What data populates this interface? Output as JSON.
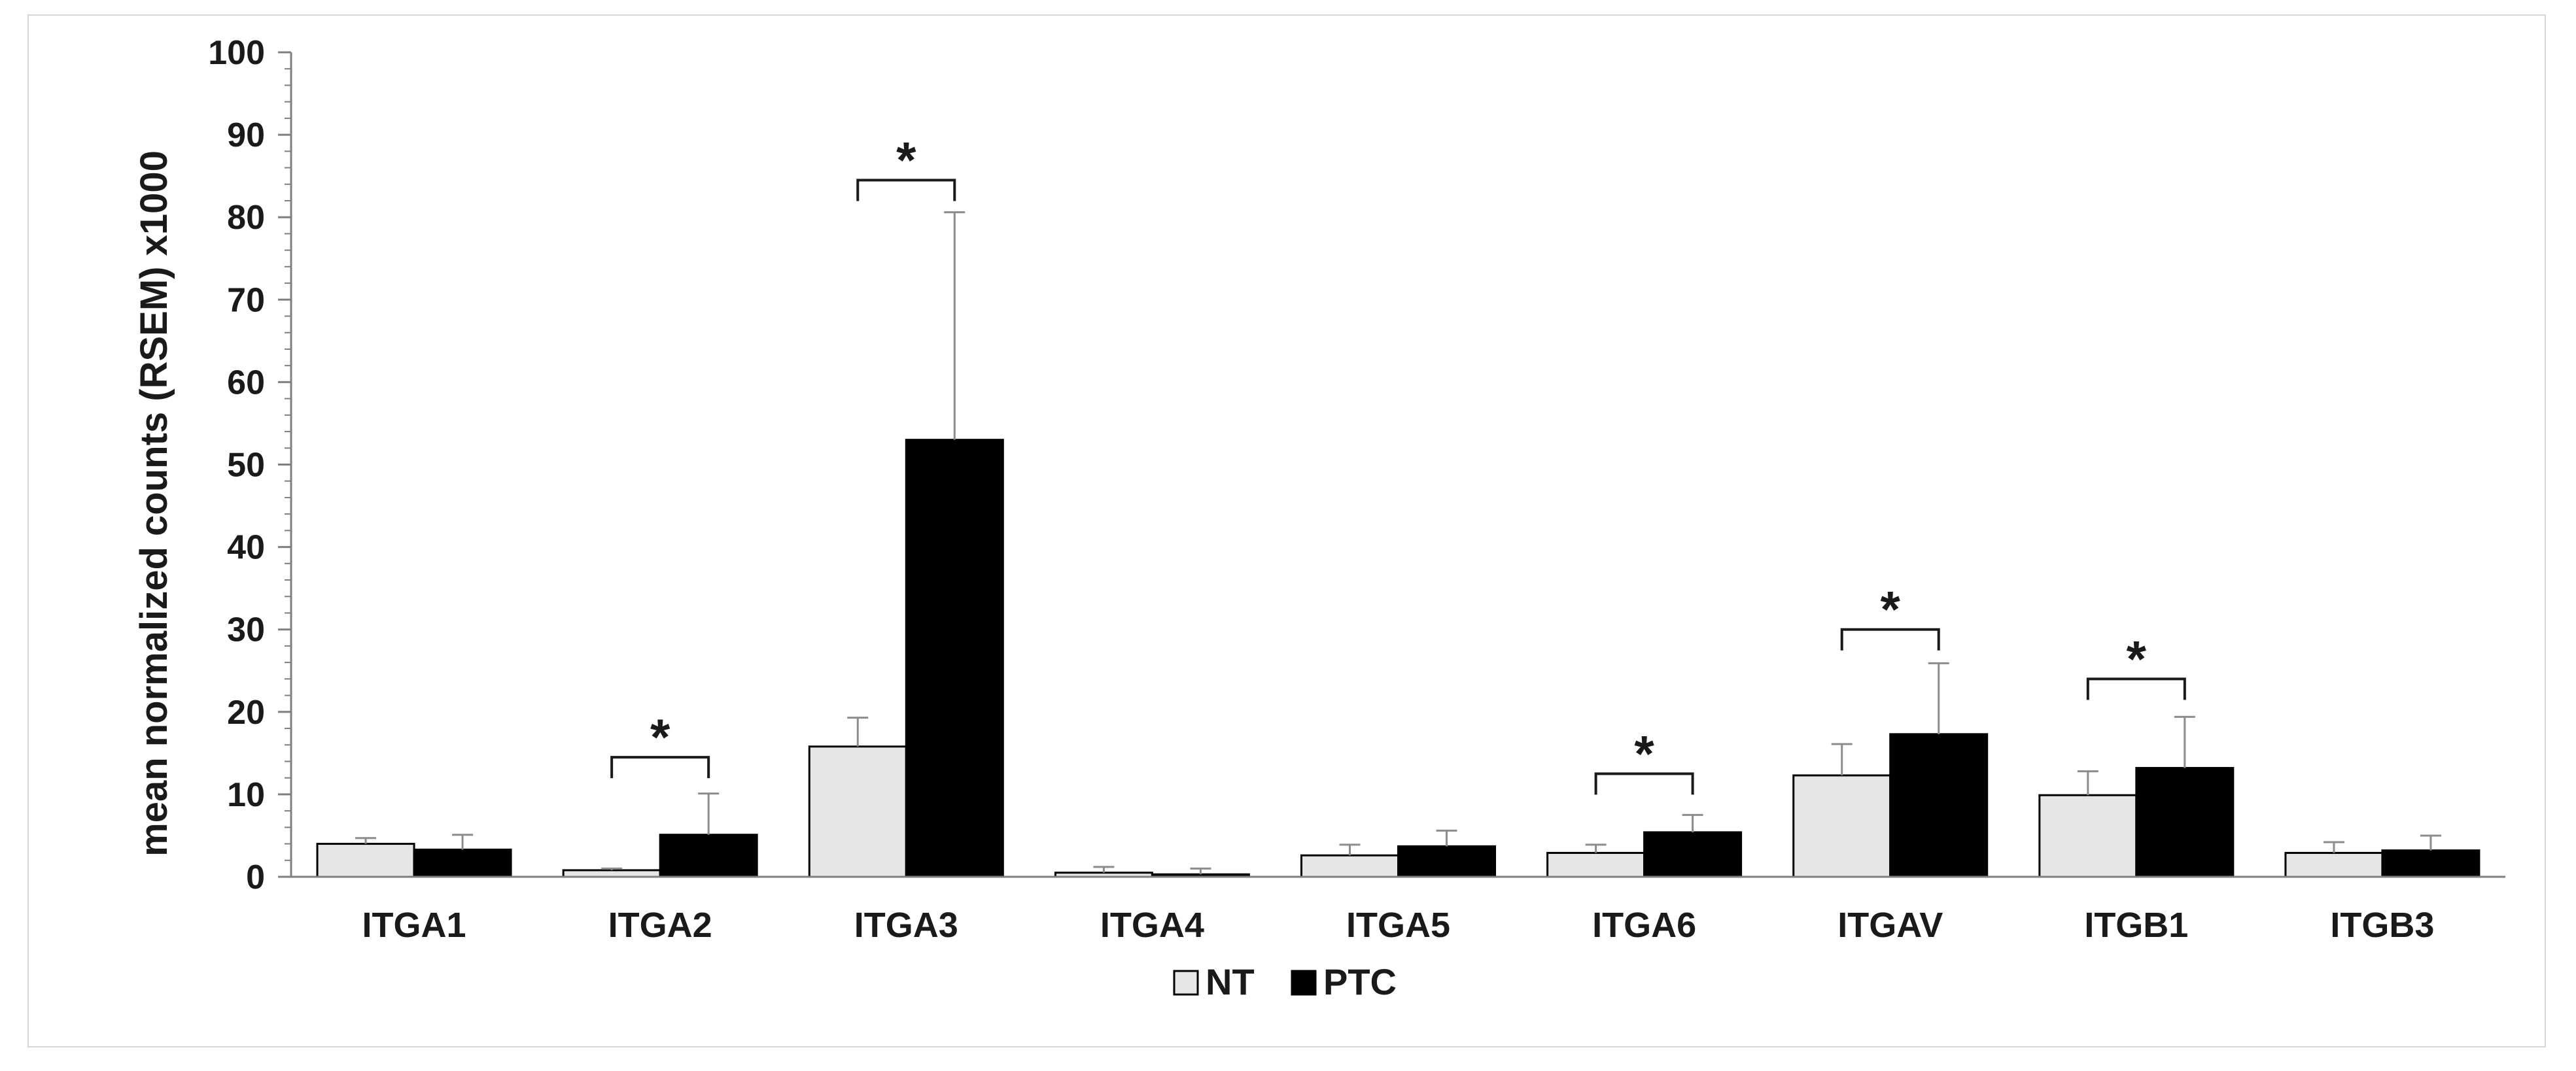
{
  "chart_data": {
    "type": "bar",
    "title": "",
    "xlabel": "",
    "ylabel": "mean normalized counts (RSEM) x1000",
    "ylim": [
      0,
      100
    ],
    "yticks": [
      0,
      10,
      20,
      30,
      40,
      50,
      60,
      70,
      80,
      90,
      100
    ],
    "grid": false,
    "legend_position": "bottom",
    "categories": [
      "ITGA1",
      "ITGA2",
      "ITGA3",
      "ITGA4",
      "ITGA5",
      "ITGA6",
      "ITGAV",
      "ITGB1",
      "ITGB3"
    ],
    "series": [
      {
        "name": "NT",
        "color": "#e6e6e6",
        "values": [
          4.0,
          0.8,
          15.8,
          0.5,
          2.6,
          2.9,
          12.3,
          9.9,
          2.9
        ],
        "error": [
          0.7,
          0.2,
          3.5,
          0.7,
          1.3,
          1.0,
          3.8,
          2.9,
          1.3
        ]
      },
      {
        "name": "PTC",
        "color": "#000000",
        "values": [
          3.3,
          5.1,
          53.0,
          0.3,
          3.7,
          5.4,
          17.3,
          13.2,
          3.2
        ],
        "error": [
          1.8,
          5.0,
          27.6,
          0.7,
          1.9,
          2.1,
          8.6,
          6.2,
          1.8
        ]
      }
    ],
    "significance": [
      {
        "category": "ITGA2",
        "y": 14.5,
        "label": "*"
      },
      {
        "category": "ITGA3",
        "y": 84.5,
        "label": "*"
      },
      {
        "category": "ITGA6",
        "y": 12.5,
        "label": "*"
      },
      {
        "category": "ITGAV",
        "y": 30.0,
        "label": "*"
      },
      {
        "category": "ITGB1",
        "y": 24.0,
        "label": "*"
      }
    ]
  }
}
